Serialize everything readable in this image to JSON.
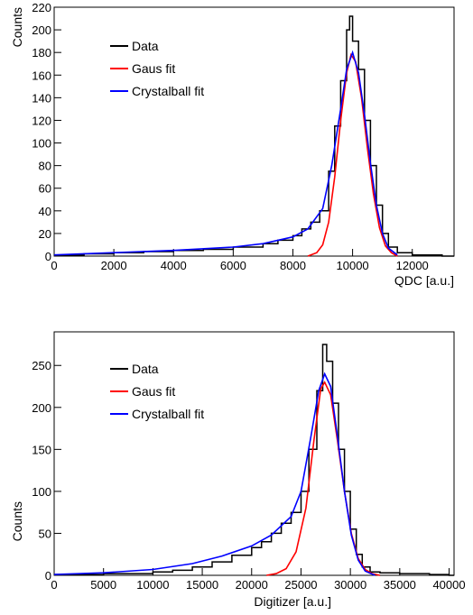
{
  "chart_data": [
    {
      "type": "line",
      "xlabel": "QDC [a.u.]",
      "ylabel": "Counts",
      "xlim": [
        0,
        13400
      ],
      "ylim": [
        0,
        220
      ],
      "xticks": [
        0,
        2000,
        4000,
        6000,
        8000,
        10000,
        12000
      ],
      "yticks": [
        0,
        20,
        40,
        60,
        80,
        100,
        120,
        140,
        160,
        180,
        200,
        220
      ],
      "legend_position": "top-left",
      "series": [
        {
          "name": "Data",
          "color": "#000000",
          "style": "histogram",
          "x": [
            0,
            1000,
            2000,
            3000,
            4000,
            5000,
            6000,
            7000,
            7500,
            8000,
            8300,
            8600,
            8900,
            9200,
            9400,
            9600,
            9800,
            9900,
            10000,
            10200,
            10400,
            10600,
            10800,
            11000,
            11200,
            11500,
            12000,
            13000
          ],
          "y": [
            1,
            2,
            3,
            4,
            5,
            6,
            8,
            11,
            14,
            18,
            24,
            30,
            40,
            75,
            115,
            155,
            200,
            212,
            190,
            165,
            120,
            80,
            45,
            20,
            8,
            3,
            1,
            0
          ]
        },
        {
          "name": "Gaus fit",
          "color": "#ff0000",
          "style": "curve",
          "x": [
            8500,
            8800,
            9000,
            9200,
            9400,
            9600,
            9800,
            9950,
            10100,
            10300,
            10500,
            10700,
            10900,
            11100,
            11300,
            11500
          ],
          "y": [
            0,
            3,
            10,
            30,
            70,
            120,
            162,
            178,
            172,
            140,
            95,
            55,
            25,
            9,
            3,
            0
          ]
        },
        {
          "name": "Crystalball fit",
          "color": "#0000ff",
          "style": "curve",
          "x": [
            0,
            2000,
            4000,
            6000,
            7000,
            8000,
            8500,
            9000,
            9300,
            9600,
            9800,
            10000,
            10200,
            10400,
            10600,
            10800,
            11000,
            11200,
            11500
          ],
          "y": [
            1,
            3,
            5,
            8,
            11,
            17,
            24,
            42,
            80,
            130,
            165,
            180,
            162,
            125,
            82,
            45,
            20,
            7,
            1
          ]
        }
      ]
    },
    {
      "type": "line",
      "xlabel": "Digitizer [a.u.]",
      "ylabel": "Counts",
      "xlim": [
        0,
        40500
      ],
      "ylim": [
        0,
        290
      ],
      "xticks": [
        0,
        5000,
        10000,
        15000,
        20000,
        25000,
        30000,
        35000,
        40000
      ],
      "yticks": [
        0,
        50,
        100,
        150,
        200,
        250
      ],
      "legend_position": "top-left",
      "series": [
        {
          "name": "Data",
          "color": "#000000",
          "style": "histogram",
          "x": [
            0,
            5000,
            10000,
            12000,
            14000,
            16000,
            18000,
            20000,
            21000,
            22000,
            23000,
            24000,
            25000,
            25800,
            26600,
            27200,
            27600,
            28200,
            28800,
            29400,
            30000,
            30600,
            31200,
            32000,
            33000,
            35000,
            38000,
            40000
          ],
          "y": [
            1,
            2,
            4,
            6,
            10,
            16,
            24,
            33,
            40,
            50,
            62,
            75,
            100,
            150,
            220,
            275,
            255,
            205,
            150,
            100,
            55,
            25,
            10,
            4,
            3,
            2,
            1,
            0
          ]
        },
        {
          "name": "Gaus fit",
          "color": "#ff0000",
          "style": "curve",
          "x": [
            21500,
            22500,
            23500,
            24500,
            25500,
            26300,
            27000,
            27400,
            28000,
            28700,
            29400,
            30100,
            30800,
            31500,
            32200,
            33000
          ],
          "y": [
            0,
            2,
            8,
            28,
            80,
            160,
            222,
            230,
            215,
            160,
            100,
            50,
            20,
            7,
            2,
            0
          ]
        },
        {
          "name": "Crystalball fit",
          "color": "#0000ff",
          "style": "curve",
          "x": [
            0,
            5000,
            10000,
            14000,
            17000,
            20000,
            22000,
            24000,
            25000,
            26000,
            26800,
            27400,
            28000,
            28700,
            29400,
            30100,
            30800,
            31500,
            32500
          ],
          "y": [
            1,
            3,
            7,
            14,
            23,
            35,
            48,
            70,
            100,
            165,
            220,
            240,
            225,
            165,
            100,
            48,
            18,
            5,
            0
          ]
        }
      ]
    }
  ]
}
